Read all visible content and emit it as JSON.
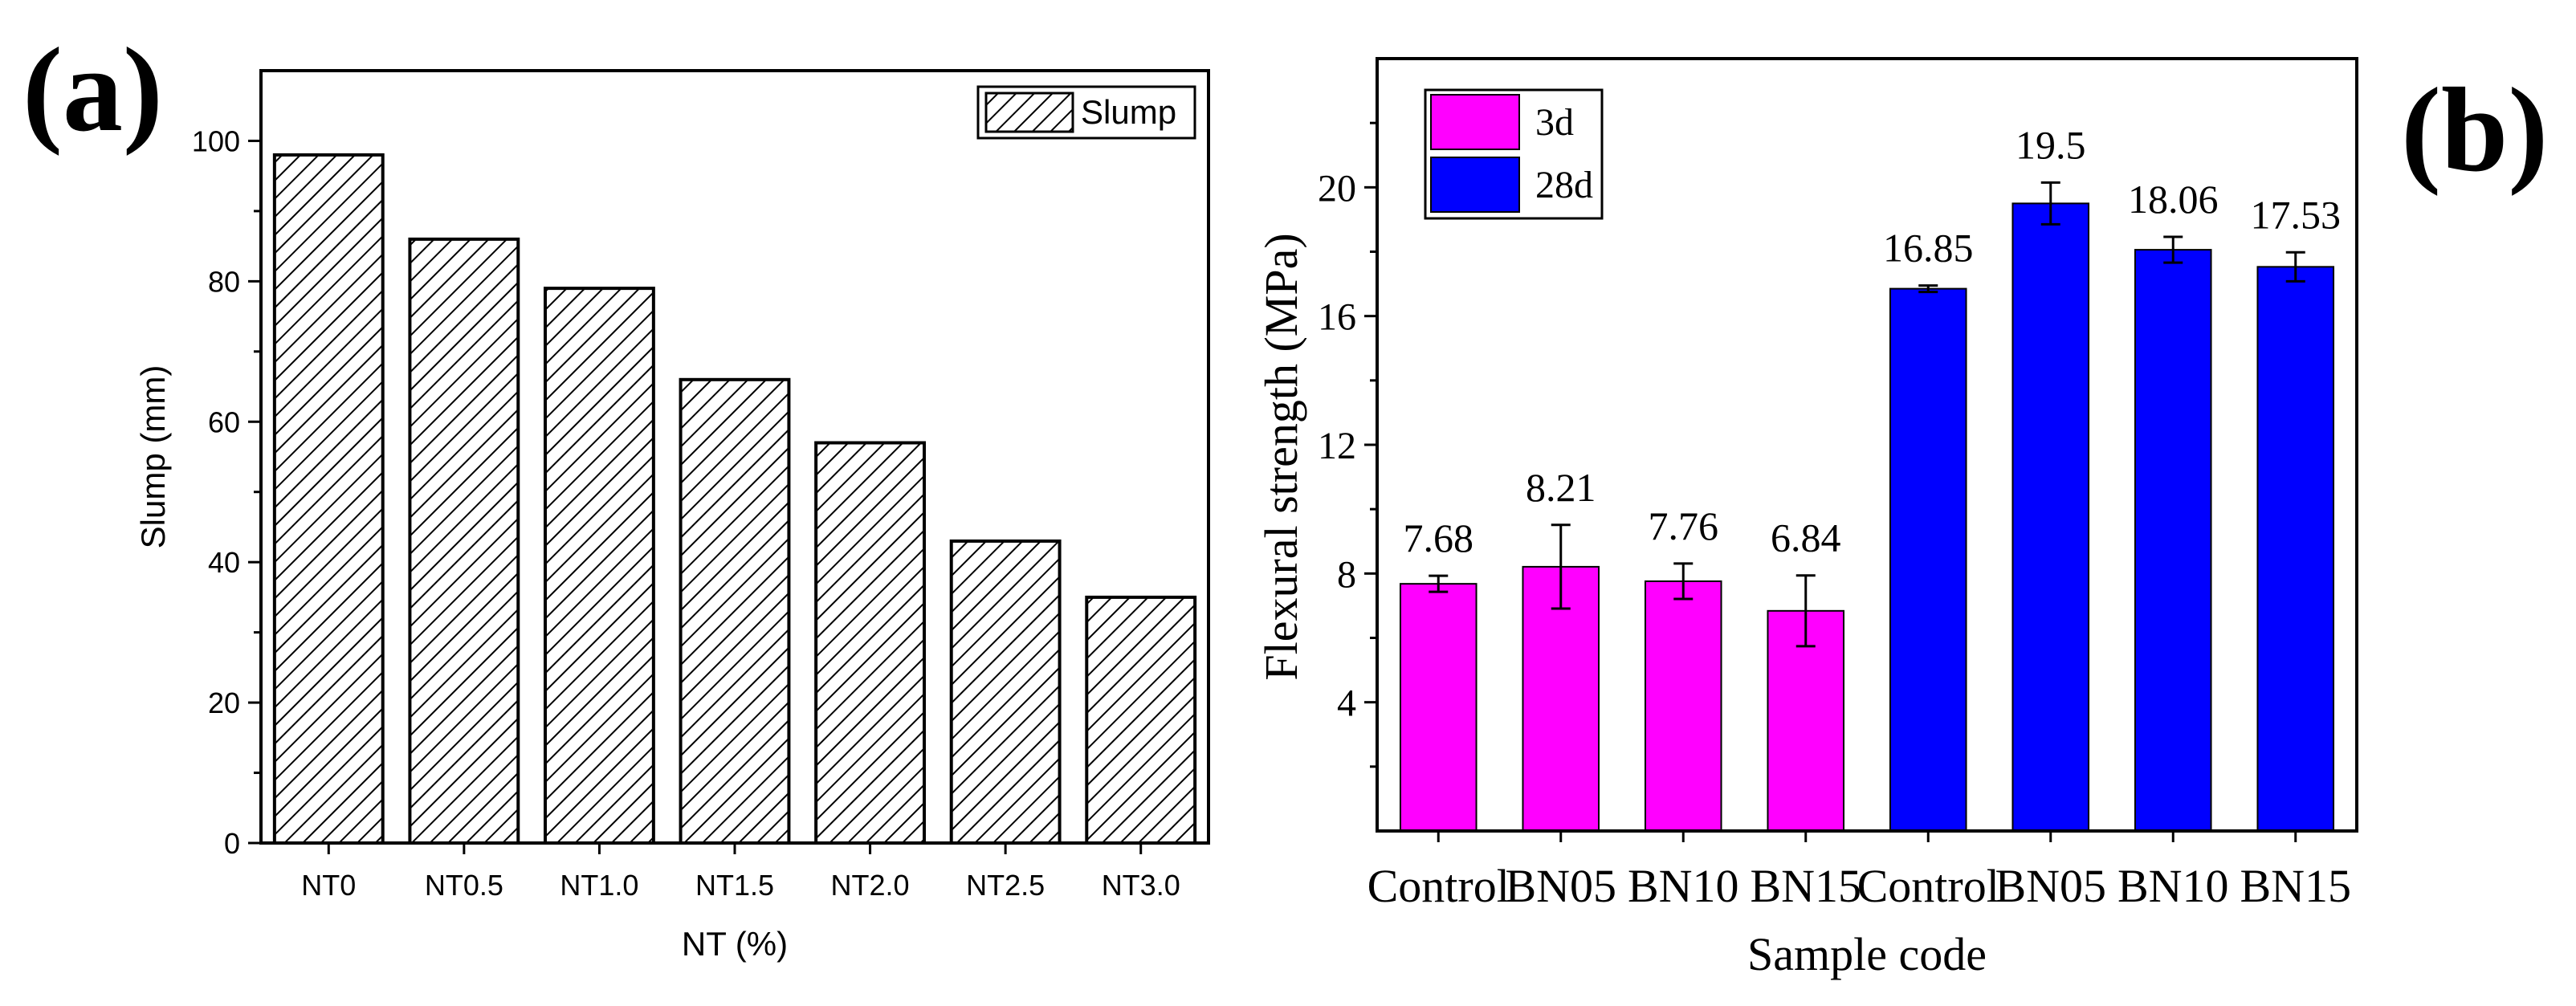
{
  "panels": {
    "a": {
      "tag": "(a)"
    },
    "b": {
      "tag": "(b)"
    }
  },
  "chart_data": [
    {
      "id": "a",
      "type": "bar",
      "title": "",
      "xlabel": "NT (%)",
      "ylabel": "Slump (mm)",
      "categories": [
        "NT0",
        "NT0.5",
        "NT1.0",
        "NT1.5",
        "NT2.0",
        "NT2.5",
        "NT3.0"
      ],
      "series": [
        {
          "name": "Slump",
          "values": [
            98,
            86,
            79,
            66,
            57,
            43,
            35
          ],
          "pattern": "diagonal-hatch",
          "color": "#000000"
        }
      ],
      "ylim": [
        0,
        110
      ],
      "yticks": [
        0,
        20,
        40,
        60,
        80,
        100
      ],
      "legend": "top-right",
      "grid": false
    },
    {
      "id": "b",
      "type": "bar",
      "title": "",
      "xlabel": "Sample code",
      "ylabel": "Flexural strength (MPa)",
      "categories": [
        "Control",
        "BN05",
        "BN10",
        "BN15",
        "Control",
        "BN05",
        "BN10",
        "BN15"
      ],
      "series": [
        {
          "name": "3d",
          "color": "#ff00ff",
          "values": [
            7.68,
            8.21,
            7.76,
            6.84,
            null,
            null,
            null,
            null
          ],
          "errors": [
            0.25,
            1.3,
            0.55,
            1.1,
            null,
            null,
            null,
            null
          ]
        },
        {
          "name": "28d",
          "color": "#0000ff",
          "values": [
            null,
            null,
            null,
            null,
            16.85,
            19.5,
            18.06,
            17.53
          ],
          "errors": [
            null,
            null,
            null,
            null,
            0.1,
            0.65,
            0.4,
            0.45
          ]
        }
      ],
      "labels": [
        "7.68",
        "8.21",
        "7.76",
        "6.84",
        "16.85",
        "19.5",
        "18.06",
        "17.53"
      ],
      "ylim": [
        0,
        24
      ],
      "yticks": [
        4,
        8,
        12,
        16,
        20
      ],
      "legend": "top-left",
      "grid": false
    }
  ]
}
